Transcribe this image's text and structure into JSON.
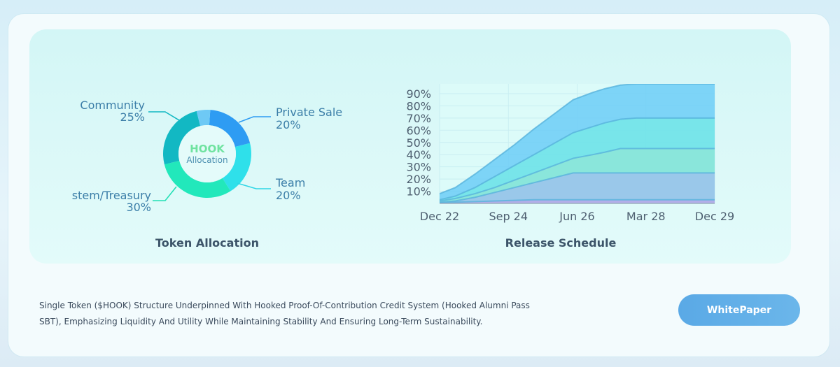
{
  "chart_data": [
    {
      "type": "pie",
      "center_label": {
        "brand": "HOOK",
        "sub": "Allocation"
      },
      "slices": [
        {
          "name": "Private Sale",
          "value": 20,
          "color": "#2e9cf3"
        },
        {
          "name": "Team",
          "value": 20,
          "color": "#2fe0ea"
        },
        {
          "name": "stem/Treasury",
          "value": 30,
          "color": "#22e8bb"
        },
        {
          "name": "Community",
          "value": 25,
          "color": "#12b8c3"
        },
        {
          "name": "",
          "value": 5,
          "color": "#6ec9f5"
        }
      ],
      "labels": [
        {
          "name": "Private Sale",
          "pct": "20%"
        },
        {
          "name": "Team",
          "pct": "20%"
        },
        {
          "name": "stem/Treasury",
          "pct": "30%"
        },
        {
          "name": "Community",
          "pct": "25%"
        }
      ],
      "title": "Token Allocation"
    },
    {
      "type": "area",
      "title": "Release Schedule",
      "x_ticks": [
        "Dec 22",
        "Sep 24",
        "Jun 26",
        "Mar 28",
        "Dec 29"
      ],
      "y_ticks": [
        "10%",
        "20%",
        "30%",
        "40%",
        "50%",
        "60%",
        "70%",
        "80%",
        "90%"
      ],
      "ylim": [
        0,
        98
      ],
      "x": [
        0,
        0.4,
        0.9,
        1.4,
        1.9,
        2.4,
        2.9,
        3.4,
        3.9,
        4.2,
        4.6,
        5.0,
        5.4,
        6.0,
        7.0
      ],
      "series": [
        {
          "values": [
            0.5,
            1,
            1.5,
            2,
            2.5,
            3,
            3,
            3,
            3,
            3,
            3,
            3,
            3,
            3,
            3
          ],
          "color": "#b6a9e8"
        },
        {
          "values": [
            1,
            2,
            5,
            9,
            13,
            17,
            21,
            25,
            25,
            25,
            25,
            25,
            25,
            25,
            25
          ],
          "color": "#9cc2ec"
        },
        {
          "values": [
            2,
            4,
            8,
            13,
            19,
            25,
            31,
            37,
            40,
            42,
            45,
            45,
            45,
            45,
            45
          ],
          "color": "#8de6d8"
        },
        {
          "values": [
            3,
            6,
            13,
            22,
            31,
            40,
            49,
            58,
            63,
            66,
            69,
            70,
            70,
            70,
            70
          ],
          "color": "#77e7e7"
        },
        {
          "values": [
            8,
            13,
            24,
            36,
            48,
            61,
            73,
            85,
            91,
            94,
            97,
            98,
            98,
            98,
            98
          ],
          "color": "#6ccdf7"
        }
      ],
      "grid": true
    }
  ],
  "footer": {
    "description_line1": "Single Token ($HOOK) Structure Underpinned With Hooked Proof-Of-Contribution Credit System (Hooked Alumni Pass",
    "description_line2": "SBT), Emphasizing Liquidity And Utility While Maintaining Stability And Ensuring Long-Term Sustainability.",
    "button_label": "WhitePaper"
  }
}
